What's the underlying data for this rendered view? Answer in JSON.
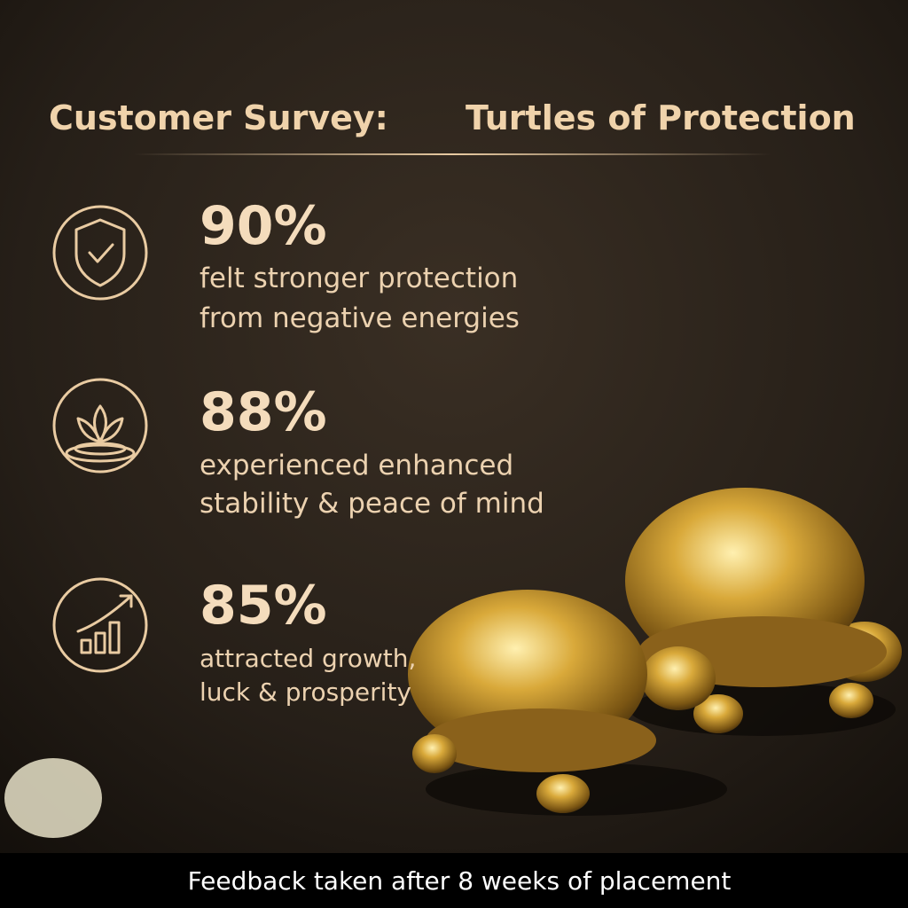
{
  "header": {
    "title_lead": "Customer Survey:",
    "title_main": "Turtles of Protection"
  },
  "stats": [
    {
      "value": "90%",
      "lines": [
        "felt stronger protection",
        "from negative energies"
      ]
    },
    {
      "value": "88%",
      "lines": [
        "experienced enhanced",
        "stability & peace of mind"
      ]
    },
    {
      "value": "85%",
      "lines": [
        "attracted growth,",
        "luck & prosperity"
      ]
    }
  ],
  "footer": {
    "note": "Feedback taken after 8 weeks of placement"
  }
}
